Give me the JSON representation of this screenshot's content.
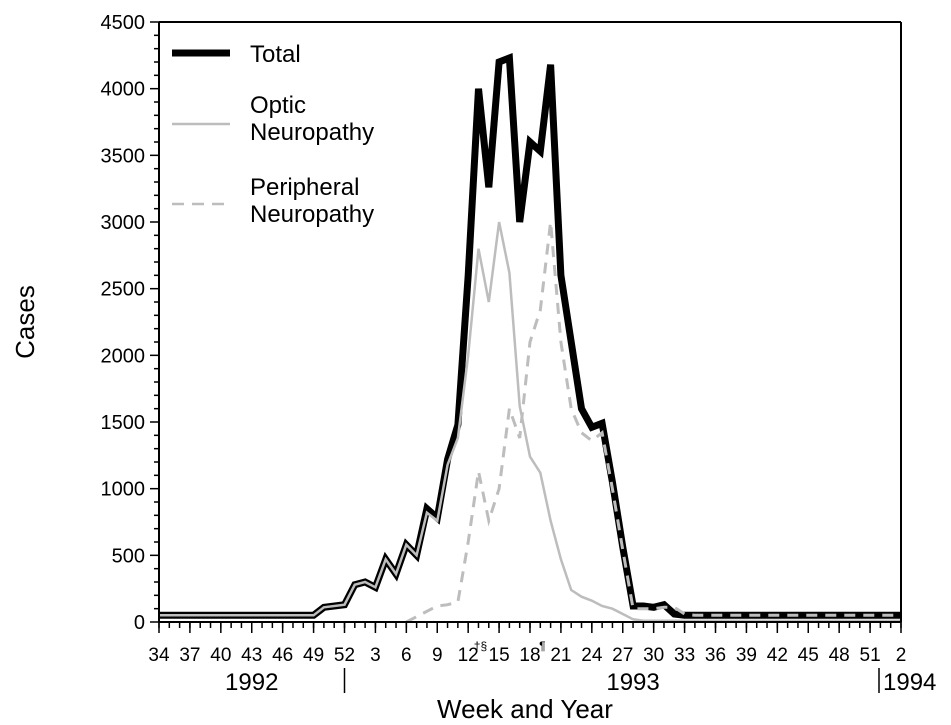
{
  "chart_data": {
    "type": "line",
    "xlabel": "Week and Year",
    "ylabel": "Cases",
    "ylim": [
      0,
      4500
    ],
    "y_ticks": [
      "0",
      "500",
      "1000",
      "1500",
      "2000",
      "2500",
      "3000",
      "3500",
      "4000",
      "4500"
    ],
    "x_tick_labels": [
      "34",
      "37",
      "40",
      "43",
      "46",
      "49",
      "52",
      "3",
      "6",
      "9",
      "12",
      "15",
      "18",
      "21",
      "24",
      "27",
      "30",
      "33",
      "36",
      "39",
      "42",
      "45",
      "48",
      "51",
      "2"
    ],
    "x_tick_weeks": [
      0,
      3,
      6,
      9,
      12,
      15,
      18,
      21,
      24,
      27,
      30,
      33,
      36,
      39,
      42,
      45,
      48,
      51,
      54,
      57,
      60,
      63,
      66,
      69,
      72
    ],
    "footnotes": [
      {
        "text": "†§",
        "week": 31
      },
      {
        "text": "¶",
        "week": 37
      }
    ],
    "years": [
      {
        "label": "1992",
        "center_week": 9
      },
      {
        "label": "1993",
        "center_week": 46
      },
      {
        "label": "1994",
        "center_week": 72
      }
    ],
    "year_dividers": [
      18,
      72
    ],
    "legend_position": "top-left",
    "series": [
      {
        "name": "Total",
        "style": "thick-solid",
        "color": "#000000",
        "weeks": [
          0,
          15,
          16,
          18,
          19,
          20,
          21,
          22,
          23,
          24,
          25,
          26,
          27,
          28,
          29,
          30,
          31,
          32,
          33,
          34,
          35,
          36,
          37,
          38,
          39,
          40,
          41,
          42,
          43,
          44,
          45,
          46,
          47,
          48,
          49,
          50,
          51,
          52,
          53,
          54,
          55,
          56,
          57,
          72
        ],
        "values": [
          50,
          50,
          110,
          130,
          280,
          300,
          260,
          470,
          360,
          580,
          500,
          850,
          780,
          1220,
          1480,
          2600,
          4000,
          3260,
          4200,
          4230,
          3000,
          3600,
          3530,
          4180,
          2600,
          2100,
          1600,
          1460,
          1490,
          1050,
          560,
          120,
          120,
          110,
          130,
          60,
          50,
          50,
          50,
          50,
          50,
          50,
          50,
          50
        ]
      },
      {
        "name": "Optic Neuropathy",
        "style": "thin-solid",
        "color": "#bdbdbd",
        "weeks": [
          0,
          15,
          16,
          18,
          19,
          20,
          21,
          22,
          23,
          24,
          25,
          26,
          27,
          28,
          29,
          30,
          31,
          32,
          33,
          34,
          35,
          36,
          37,
          38,
          39,
          40,
          41,
          42,
          43,
          44,
          45,
          46,
          47,
          48,
          49,
          50,
          51,
          52,
          53,
          54,
          55,
          56,
          57,
          72
        ],
        "values": [
          50,
          50,
          110,
          130,
          280,
          300,
          260,
          470,
          360,
          580,
          500,
          820,
          760,
          1180,
          1380,
          2000,
          2800,
          2400,
          3000,
          2620,
          1620,
          1240,
          1120,
          760,
          470,
          240,
          190,
          160,
          120,
          100,
          60,
          20,
          10,
          10,
          10,
          10,
          10,
          10,
          10,
          10,
          10,
          10,
          10,
          10
        ]
      },
      {
        "name": "Peripheral Neuropathy",
        "style": "dashed",
        "color": "#bdbdbd",
        "weeks": [
          24,
          25,
          26,
          27,
          28,
          29,
          30,
          31,
          32,
          33,
          34,
          35,
          36,
          37,
          38,
          39,
          40,
          41,
          42,
          43,
          44,
          45,
          46,
          47,
          48,
          49,
          50,
          51,
          52,
          53,
          54,
          55,
          56,
          57,
          72
        ],
        "values": [
          0,
          40,
          80,
          120,
          130,
          150,
          600,
          1130,
          760,
          1000,
          1600,
          1380,
          2100,
          2340,
          3000,
          2100,
          1600,
          1420,
          1360,
          1420,
          1000,
          540,
          100,
          100,
          100,
          110,
          110,
          60,
          50,
          50,
          50,
          50,
          50,
          50,
          50
        ]
      }
    ]
  }
}
